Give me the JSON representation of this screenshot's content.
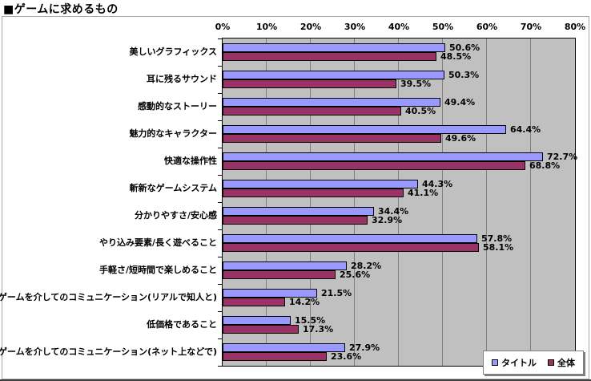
{
  "title": "■ゲームに求めるもの",
  "chart_data": {
    "type": "bar",
    "orientation": "horizontal",
    "title": "■ゲームに求めるもの",
    "categories": [
      "美しいグラフィックス",
      "耳に残るサウンド",
      "感動的なストーリー",
      "魅力的なキャラクター",
      "快適な操作性",
      "斬新なゲームシステム",
      "分かりやすさ/安心感",
      "やり込み要素/長く遊べること",
      "手軽さ/短時間で楽しめること",
      "ゲームを介してのコミュニケーション(リアルで知人と)",
      "低価格であること",
      "ゲームを介してのコミュニケーション(ネット上などで)"
    ],
    "series": [
      {
        "name": "タイトル",
        "color": "#9999FF",
        "values": [
          50.6,
          50.3,
          49.4,
          64.4,
          72.7,
          44.3,
          34.4,
          57.8,
          28.2,
          21.5,
          15.5,
          27.9
        ]
      },
      {
        "name": "全体",
        "color": "#993366",
        "values": [
          48.5,
          39.5,
          40.5,
          49.6,
          68.8,
          41.1,
          32.9,
          58.1,
          25.6,
          14.2,
          17.3,
          23.6
        ]
      }
    ],
    "x_ticks": [
      "0%",
      "10%",
      "20%",
      "30%",
      "40%",
      "50%",
      "60%",
      "70%",
      "80%"
    ],
    "xlim": [
      0,
      80
    ],
    "value_suffix": "%",
    "value_labels": true,
    "grid": true,
    "legend_position": "bottom-right",
    "colors": {
      "plot_background": "#C0C0C0",
      "gridline": "#808080",
      "bar_border": "#000000",
      "frame_border": "#A6A6A6",
      "text": "#000000"
    }
  }
}
